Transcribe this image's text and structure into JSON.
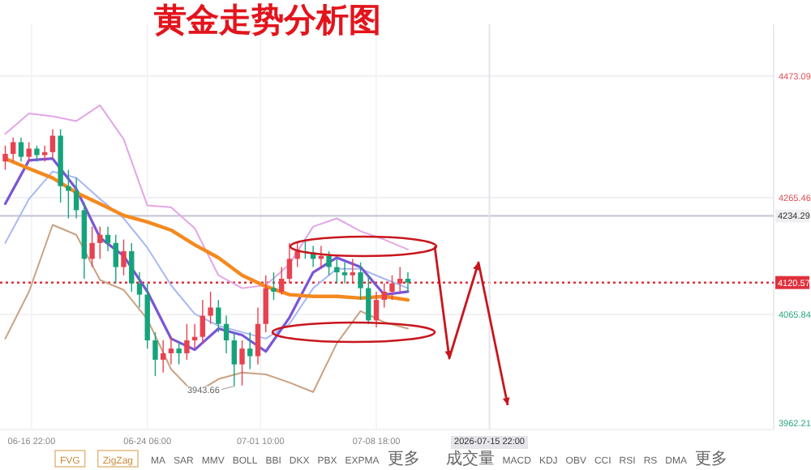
{
  "chart_data": {
    "type": "candlestick",
    "title": "黄金走势分析图",
    "x": [
      "2026-06-15T06:00",
      "2026-06-15T18:00",
      "2026-06-16T06:00",
      "2026-06-16T18:00",
      "2026-06-17T06:00",
      "2026-06-17T18:00",
      "2026-06-18T06:00",
      "2026-06-18T18:00",
      "2026-06-19T06:00",
      "2026-06-19T18:00",
      "2026-06-20T06:00",
      "2026-06-20T18:00",
      "2026-06-21T06:00",
      "2026-06-21T18:00",
      "2026-06-22T06:00",
      "2026-06-22T18:00",
      "2026-06-23T06:00",
      "2026-06-23T18:00",
      "2026-06-24T06:00",
      "2026-06-24T18:00",
      "2026-06-25T06:00",
      "2026-06-25T18:00",
      "2026-06-26T06:00",
      "2026-06-26T18:00",
      "2026-06-27T06:00",
      "2026-06-27T18:00",
      "2026-06-28T06:00",
      "2026-06-28T18:00",
      "2026-06-29T06:00",
      "2026-06-29T18:00",
      "2026-06-30T06:00",
      "2026-06-30T18:00",
      "2026-07-01T06:00",
      "2026-07-01T18:00",
      "2026-07-02T06:00",
      "2026-07-02T18:00",
      "2026-07-03T06:00",
      "2026-07-03T18:00",
      "2026-07-04T06:00",
      "2026-07-04T18:00",
      "2026-07-05T06:00",
      "2026-07-05T18:00",
      "2026-07-06T06:00",
      "2026-07-06T18:00",
      "2026-07-07T06:00",
      "2026-07-07T18:00",
      "2026-07-08T06:00",
      "2026-07-08T18:00",
      "2026-07-09T06:00",
      "2026-07-09T18:00",
      "2026-07-10T06:00",
      "2026-07-10T18:00"
    ],
    "ohlc": [
      [
        4327,
        4354,
        4313,
        4340
      ],
      [
        4340,
        4368,
        4327,
        4360
      ],
      [
        4360,
        4368,
        4327,
        4335
      ],
      [
        4335,
        4360,
        4327,
        4349
      ],
      [
        4349,
        4354,
        4327,
        4338
      ],
      [
        4338,
        4354,
        4327,
        4343
      ],
      [
        4343,
        4382,
        4332,
        4371
      ],
      [
        4371,
        4382,
        4257,
        4285
      ],
      [
        4285,
        4313,
        4230,
        4277
      ],
      [
        4277,
        4299,
        4230,
        4244
      ],
      [
        4244,
        4257,
        4127,
        4161
      ],
      [
        4161,
        4216,
        4147,
        4188
      ],
      [
        4188,
        4216,
        4161,
        4202
      ],
      [
        4202,
        4216,
        4174,
        4188
      ],
      [
        4188,
        4202,
        4119,
        4147
      ],
      [
        4147,
        4194,
        4133,
        4174
      ],
      [
        4174,
        4188,
        4105,
        4119
      ],
      [
        4119,
        4138,
        4078,
        4100
      ],
      [
        4100,
        4119,
        4008,
        4022
      ],
      [
        4022,
        4036,
        3961,
        3989
      ],
      [
        3989,
        4022,
        3967,
        4000
      ],
      [
        4000,
        4028,
        3981,
        4008
      ],
      [
        4008,
        4017,
        3981,
        4000
      ],
      [
        4000,
        4050,
        3989,
        4022
      ],
      [
        4022,
        4050,
        4008,
        4028
      ],
      [
        4028,
        4091,
        4017,
        4064
      ],
      [
        4064,
        4105,
        4050,
        4078
      ],
      [
        4078,
        4091,
        4036,
        4050
      ],
      [
        4050,
        4064,
        4000,
        4022
      ],
      [
        4022,
        4036,
        3943.66,
        3981
      ],
      [
        3981,
        4022,
        3945,
        4008
      ],
      [
        4008,
        4036,
        3973,
        3995
      ],
      [
        3995,
        4078,
        3981,
        4050
      ],
      [
        4050,
        4133,
        4036,
        4111
      ],
      [
        4111,
        4138,
        4091,
        4105
      ],
      [
        4105,
        4147,
        4100,
        4127
      ],
      [
        4127,
        4188,
        4119,
        4161
      ],
      [
        4161,
        4188,
        4147,
        4174
      ],
      [
        4174,
        4194,
        4161,
        4172
      ],
      [
        4172,
        4183,
        4147,
        4161
      ],
      [
        4161,
        4183,
        4147,
        4166
      ],
      [
        4166,
        4174,
        4133,
        4147
      ],
      [
        4147,
        4161,
        4119,
        4138
      ],
      [
        4138,
        4155,
        4119,
        4133
      ],
      [
        4133,
        4161,
        4119,
        4138
      ],
      [
        4138,
        4155,
        4091,
        4111
      ],
      [
        4111,
        4133,
        4050,
        4056
      ],
      [
        4056,
        4105,
        4044,
        4091
      ],
      [
        4091,
        4119,
        4078,
        4105
      ],
      [
        4105,
        4133,
        4091,
        4119
      ],
      [
        4119,
        4147,
        4105,
        4127
      ],
      [
        4127,
        4138,
        4105,
        4120.57
      ]
    ],
    "series": [
      {
        "type": "line",
        "color": "#e3a6e6",
        "x": [
          "2026-06-15T06:00",
          "2026-06-16T18:00",
          "2026-06-18T06:00",
          "2026-06-19T18:00",
          "2026-06-21T06:00",
          "2026-06-22T18:00",
          "2026-06-24T06:00",
          "2026-06-25T18:00",
          "2026-06-27T06:00",
          "2026-06-28T18:00",
          "2026-06-30T06:00",
          "2026-07-01T18:00",
          "2026-07-03T06:00",
          "2026-07-04T18:00",
          "2026-07-06T06:00",
          "2026-07-07T18:00",
          "2026-07-09T06:00",
          "2026-07-10T18:00"
        ],
        "values": [
          4374,
          4409,
          4404,
          4396,
          4423,
          4365,
          4252,
          4249,
          4213,
          4133,
          4111,
          4116,
          4152,
          4216,
          4230,
          4208,
          4194,
          4177
        ]
      },
      {
        "type": "line",
        "color": "#a9b8f2",
        "x": [
          "2026-06-15T06:00",
          "2026-06-16T18:00",
          "2026-06-18T06:00",
          "2026-06-19T18:00",
          "2026-06-21T06:00",
          "2026-06-22T18:00",
          "2026-06-24T06:00",
          "2026-06-25T18:00",
          "2026-06-27T06:00",
          "2026-06-28T18:00",
          "2026-06-30T06:00",
          "2026-07-01T18:00",
          "2026-07-03T06:00",
          "2026-07-04T18:00",
          "2026-07-06T06:00",
          "2026-07-07T18:00",
          "2026-07-09T06:00",
          "2026-07-10T18:00"
        ],
        "values": [
          4188,
          4263,
          4310,
          4299,
          4263,
          4230,
          4180,
          4116,
          4067,
          4047,
          4036,
          4025,
          4050,
          4111,
          4144,
          4144,
          4127,
          4111
        ]
      },
      {
        "type": "line",
        "color": "#c9a283",
        "x": [
          "2026-06-15T06:00",
          "2026-06-16T18:00",
          "2026-06-18T06:00",
          "2026-06-19T18:00",
          "2026-06-21T06:00",
          "2026-06-22T18:00",
          "2026-06-24T06:00",
          "2026-06-25T18:00",
          "2026-06-27T06:00",
          "2026-06-28T18:00",
          "2026-06-30T06:00",
          "2026-07-01T18:00",
          "2026-07-03T06:00",
          "2026-07-04T18:00",
          "2026-07-06T06:00",
          "2026-07-07T18:00",
          "2026-07-09T06:00",
          "2026-07-10T18:00"
        ],
        "values": [
          4025,
          4105,
          4219,
          4202,
          4125,
          4108,
          4058,
          3973,
          3931,
          3956,
          3967,
          3964,
          3950,
          3934,
          4017,
          4072,
          4053,
          4042
        ]
      },
      {
        "type": "line",
        "color": "#7a55d6",
        "x": [
          "2026-06-15T06:00",
          "2026-06-16T18:00",
          "2026-06-18T06:00",
          "2026-06-19T18:00",
          "2026-06-21T06:00",
          "2026-06-22T18:00",
          "2026-06-24T06:00",
          "2026-06-25T18:00",
          "2026-06-27T06:00",
          "2026-06-28T18:00",
          "2026-06-30T06:00",
          "2026-07-01T18:00",
          "2026-07-03T06:00",
          "2026-07-04T18:00",
          "2026-07-06T06:00",
          "2026-07-07T18:00",
          "2026-07-09T06:00",
          "2026-07-10T18:00"
        ],
        "values": [
          4255,
          4329,
          4332,
          4280,
          4197,
          4166,
          4105,
          4025,
          4006,
          4042,
          4031,
          4003,
          4061,
          4138,
          4163,
          4147,
          4100,
          4105
        ]
      },
      {
        "type": "line",
        "color": "#f5891f",
        "x": [
          "2026-06-15T06:00",
          "2026-06-16T18:00",
          "2026-06-18T06:00",
          "2026-06-19T18:00",
          "2026-06-21T06:00",
          "2026-06-22T18:00",
          "2026-06-24T06:00",
          "2026-06-25T18:00",
          "2026-06-27T06:00",
          "2026-06-28T18:00",
          "2026-06-30T06:00",
          "2026-07-01T18:00",
          "2026-07-03T06:00",
          "2026-07-04T18:00",
          "2026-07-06T06:00",
          "2026-07-07T18:00",
          "2026-07-09T06:00",
          "2026-07-10T18:00"
        ],
        "values": [
          4332,
          4315,
          4299,
          4274,
          4255,
          4235,
          4224,
          4210,
          4185,
          4163,
          4133,
          4114,
          4100,
          4097,
          4097,
          4094,
          4097,
          4091
        ]
      }
    ],
    "xlim": [
      "2026-06-14T22:00",
      "2026-08-02T22:00"
    ],
    "xticks": [
      {
        "value": "2026-06-16T22:00",
        "label": "06-16 22:00"
      },
      {
        "value": "2026-06-24T06:00",
        "label": "06-24 06:00"
      },
      {
        "value": "2026-07-01T10:00",
        "label": "07-01 10:00"
      },
      {
        "value": "2026-07-08T18:00",
        "label": "07-08 18:00"
      }
    ],
    "ylim": [
      3870,
      4561
    ],
    "yticks": [
      4473.09,
      4265.46,
      4065.84
    ],
    "grid": true,
    "ref_lines": [
      {
        "axis": "y",
        "value": 4234.29,
        "label": "4234.29",
        "color": "#c9c9d6",
        "line_style": "solid"
      },
      {
        "axis": "y",
        "value": 4120.57,
        "label": "4120.57",
        "color": "#e0303c",
        "line_style": "dotted"
      },
      {
        "axis": "x",
        "value": "2026-07-15T22:00",
        "label": "2026-07-15 22:00",
        "color": "#e4e4ea",
        "line_style": "solid"
      }
    ],
    "annotations": [
      "3962.21",
      {
        "text": "3943.66",
        "x": "2026-06-29T18:00",
        "y": 3943.66
      },
      "FVG",
      "ZigZag",
      "MA",
      "SAR",
      "MMV",
      "BOLL",
      "BBI",
      "DKX",
      "PBX",
      "EXPMA",
      "更多",
      "成交量",
      "MACD",
      "KDJ",
      "OBV",
      "CCI",
      "RSI",
      "RS",
      "DMA",
      "更多"
    ]
  }
}
